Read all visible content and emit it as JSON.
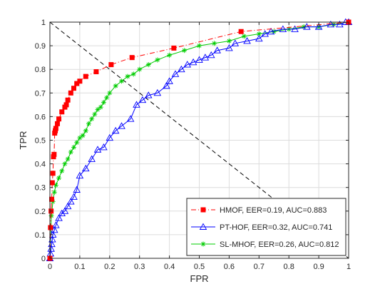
{
  "chart_data": {
    "type": "line",
    "title": "",
    "xlabel": "FPR",
    "ylabel": "TPR",
    "xlim": [
      0,
      1
    ],
    "ylim": [
      0,
      1
    ],
    "xticks": [
      "0",
      "0.1",
      "0.2",
      "0.3",
      "0.4",
      "0.5",
      "0.6",
      "0.7",
      "0.8",
      "0.9",
      "1"
    ],
    "yticks": [
      "0",
      "0.1",
      "0.2",
      "0.3",
      "0.4",
      "0.5",
      "0.6",
      "0.7",
      "0.8",
      "0.9",
      "1"
    ],
    "grid": true,
    "legend_position": "bottom-right",
    "reference_line": {
      "label": "",
      "x": [
        0,
        1
      ],
      "y": [
        1,
        0
      ],
      "color": "#000000",
      "style": "dashed"
    },
    "series": [
      {
        "name": "HMOF, EER=0.19, AUC=0.883",
        "color": "#ff0000",
        "line_style": "dash-dot",
        "marker": "square",
        "x": [
          0,
          0.002,
          0.004,
          0.006,
          0.008,
          0.01,
          0.012,
          0.014,
          0.016,
          0.018,
          0.02,
          0.025,
          0.03,
          0.04,
          0.05,
          0.055,
          0.06,
          0.07,
          0.08,
          0.09,
          0.1,
          0.12,
          0.155,
          0.205,
          0.275,
          0.415,
          0.64,
          1.0
        ],
        "y": [
          0,
          0.13,
          0.2,
          0.25,
          0.32,
          0.36,
          0.43,
          0.44,
          0.53,
          0.54,
          0.55,
          0.57,
          0.59,
          0.62,
          0.64,
          0.65,
          0.67,
          0.7,
          0.72,
          0.74,
          0.75,
          0.77,
          0.79,
          0.82,
          0.85,
          0.89,
          0.96,
          1.0
        ]
      },
      {
        "name": "PT-HOF, EER=0.32, AUC=0.741",
        "color": "#0000ff",
        "line_style": "solid",
        "marker": "triangle",
        "x": [
          0,
          0.002,
          0.004,
          0.006,
          0.008,
          0.01,
          0.015,
          0.02,
          0.03,
          0.04,
          0.05,
          0.06,
          0.07,
          0.08,
          0.09,
          0.1,
          0.12,
          0.14,
          0.16,
          0.18,
          0.2,
          0.22,
          0.24,
          0.27,
          0.29,
          0.31,
          0.33,
          0.36,
          0.39,
          0.4,
          0.42,
          0.44,
          0.46,
          0.48,
          0.5,
          0.52,
          0.54,
          0.56,
          0.6,
          0.62,
          0.66,
          0.7,
          0.72,
          0.74,
          0.78,
          0.82,
          0.86,
          0.9,
          0.94,
          0.97,
          0.99,
          1.0
        ],
        "y": [
          0,
          0.02,
          0.04,
          0.06,
          0.08,
          0.1,
          0.12,
          0.14,
          0.17,
          0.19,
          0.2,
          0.22,
          0.24,
          0.26,
          0.29,
          0.35,
          0.38,
          0.42,
          0.46,
          0.47,
          0.51,
          0.54,
          0.56,
          0.59,
          0.65,
          0.67,
          0.69,
          0.7,
          0.73,
          0.75,
          0.78,
          0.8,
          0.82,
          0.83,
          0.84,
          0.85,
          0.86,
          0.88,
          0.89,
          0.91,
          0.92,
          0.93,
          0.95,
          0.96,
          0.97,
          0.97,
          0.98,
          0.98,
          0.99,
          0.99,
          1.0,
          1.0
        ]
      },
      {
        "name": "SL-MHOF, EER=0.26, AUC=0.812",
        "color": "#00cc00",
        "line_style": "solid",
        "marker": "asterisk",
        "x": [
          0,
          0.005,
          0.01,
          0.015,
          0.02,
          0.03,
          0.04,
          0.05,
          0.06,
          0.07,
          0.08,
          0.09,
          0.1,
          0.11,
          0.12,
          0.13,
          0.14,
          0.15,
          0.16,
          0.17,
          0.18,
          0.19,
          0.2,
          0.22,
          0.24,
          0.26,
          0.28,
          0.3,
          0.33,
          0.36,
          0.4,
          0.45,
          0.5,
          0.55,
          0.6,
          0.65,
          0.7,
          0.75,
          0.8,
          0.85,
          0.9,
          0.95,
          1.0
        ],
        "y": [
          0,
          0.18,
          0.24,
          0.28,
          0.31,
          0.34,
          0.37,
          0.4,
          0.42,
          0.45,
          0.47,
          0.49,
          0.51,
          0.52,
          0.54,
          0.57,
          0.59,
          0.61,
          0.63,
          0.64,
          0.66,
          0.68,
          0.7,
          0.73,
          0.75,
          0.77,
          0.78,
          0.8,
          0.82,
          0.84,
          0.86,
          0.88,
          0.9,
          0.91,
          0.92,
          0.94,
          0.95,
          0.96,
          0.97,
          0.98,
          0.98,
          0.99,
          1.0
        ]
      }
    ]
  }
}
